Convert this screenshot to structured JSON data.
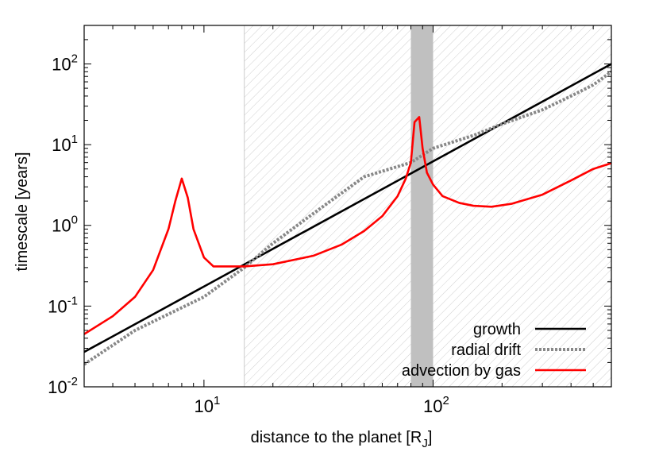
{
  "chart_data": {
    "type": "line",
    "title": "",
    "xlabel": "distance to the planet [R",
    "xlabel_subscript": "J",
    "xlabel_close": "]",
    "ylabel": "timescale [years]",
    "xscale": "log",
    "yscale": "log",
    "xlim": [
      3,
      600
    ],
    "ylim": [
      0.01,
      300
    ],
    "x_ticks": [
      {
        "value": 10,
        "base": "10",
        "exp": "1"
      },
      {
        "value": 100,
        "base": "10",
        "exp": "2"
      }
    ],
    "y_ticks": [
      {
        "value": 0.01,
        "base": "10",
        "exp": "-2"
      },
      {
        "value": 0.1,
        "base": "10",
        "exp": "-1"
      },
      {
        "value": 1,
        "base": "10",
        "exp": "0"
      },
      {
        "value": 10,
        "base": "10",
        "exp": "1"
      },
      {
        "value": 100,
        "base": "10",
        "exp": "2"
      }
    ],
    "shaded_regions": [
      {
        "style": "hatched",
        "colors": "#c8c8c8",
        "x_from": 15,
        "x_to": 600
      },
      {
        "style": "solid-band",
        "colors": "#c0c0c0",
        "x_from": 80,
        "x_to": 100
      }
    ],
    "legend_position": "bottom-right",
    "series": [
      {
        "name": "growth",
        "color": "#000000",
        "dash": "solid",
        "points": [
          [
            3,
            0.027
          ],
          [
            600,
            100
          ]
        ]
      },
      {
        "name": "radial drift",
        "color": "#888888",
        "dash": "dotted",
        "points": [
          [
            3,
            0.019
          ],
          [
            5,
            0.05
          ],
          [
            10,
            0.13
          ],
          [
            15,
            0.3
          ],
          [
            20,
            0.6
          ],
          [
            30,
            1.4
          ],
          [
            50,
            4.0
          ],
          [
            80,
            6.0
          ],
          [
            100,
            9.0
          ],
          [
            150,
            13.0
          ],
          [
            200,
            18.0
          ],
          [
            300,
            27.0
          ],
          [
            400,
            40.0
          ],
          [
            500,
            55.0
          ],
          [
            600,
            80.0
          ]
        ]
      },
      {
        "name": "advection by gas",
        "color": "#ff0000",
        "dash": "solid",
        "points": [
          [
            3,
            0.045
          ],
          [
            4,
            0.075
          ],
          [
            5,
            0.13
          ],
          [
            6,
            0.28
          ],
          [
            7,
            0.9
          ],
          [
            7.5,
            2.0
          ],
          [
            8,
            3.8
          ],
          [
            8.5,
            2.2
          ],
          [
            9,
            0.9
          ],
          [
            10,
            0.4
          ],
          [
            11,
            0.31
          ],
          [
            15,
            0.31
          ],
          [
            20,
            0.33
          ],
          [
            30,
            0.42
          ],
          [
            40,
            0.58
          ],
          [
            50,
            0.85
          ],
          [
            60,
            1.3
          ],
          [
            70,
            2.3
          ],
          [
            76,
            3.8
          ],
          [
            80,
            6.0
          ],
          [
            83,
            19.0
          ],
          [
            87,
            22.0
          ],
          [
            90,
            9.0
          ],
          [
            94,
            4.5
          ],
          [
            100,
            3.2
          ],
          [
            110,
            2.3
          ],
          [
            130,
            1.9
          ],
          [
            150,
            1.75
          ],
          [
            180,
            1.7
          ],
          [
            220,
            1.85
          ],
          [
            300,
            2.4
          ],
          [
            400,
            3.6
          ],
          [
            500,
            5.0
          ],
          [
            600,
            5.9
          ]
        ]
      }
    ]
  }
}
